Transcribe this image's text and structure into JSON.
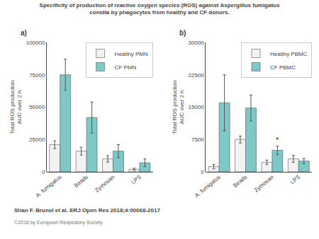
{
  "title": "Specificity of production of reactive oxygen species (ROS) against Aspergillus fumigatus\nconidia by phagocytes from healthy and CF donors.",
  "annotations": [
    "Shan F. Brunel et al. ERJ Open Res 2018;4:00068-2017",
    "©2018 by European Respiratory Society"
  ],
  "chart_data": [
    {
      "type": "bar",
      "title": "a)",
      "ylabel": "Total ROS production\nAUC over 2 h",
      "categories": [
        "A. fumigatus",
        "Beads",
        "Zymosan",
        "LPS"
      ],
      "series": [
        {
          "name": "Healthy PMN",
          "color": "#f2f2f2",
          "values": [
            21000,
            16000,
            10000,
            2000
          ],
          "errors": [
            3000,
            3000,
            2500,
            800
          ]
        },
        {
          "name": "CF PMN",
          "color": "#7ec8c8",
          "values": [
            75000,
            42000,
            16000,
            7000
          ],
          "errors": [
            12000,
            12000,
            5000,
            3000
          ]
        }
      ],
      "ylim": [
        0,
        100000
      ],
      "yticks": [
        0,
        25000,
        50000,
        75000,
        100000
      ],
      "grid": false,
      "legend": "upper right"
    },
    {
      "type": "bar",
      "title": "b)",
      "ylabel": "Total ROS production\nAUC over 2 h",
      "categories": [
        "A. fumigatus",
        "Beads",
        "Zymosan",
        "LPS"
      ],
      "series": [
        {
          "name": "Healthy PBMC",
          "color": "#f2f2f2",
          "values": [
            1200,
            7500,
            2200,
            3000
          ],
          "errors": [
            500,
            800,
            500,
            800
          ]
        },
        {
          "name": "CF PBMC",
          "color": "#7ec8c8",
          "values": [
            16000,
            14800,
            5000,
            2500
          ],
          "errors": [
            6500,
            3000,
            1000,
            600
          ]
        }
      ],
      "ylim": [
        0,
        30000
      ],
      "yticks": [
        0,
        7500,
        15000,
        22500,
        30000
      ],
      "grid": false,
      "legend": "upper right",
      "annotations": [
        {
          "text": "*",
          "category": "Zymosan",
          "series": "CF PBMC"
        }
      ]
    }
  ]
}
